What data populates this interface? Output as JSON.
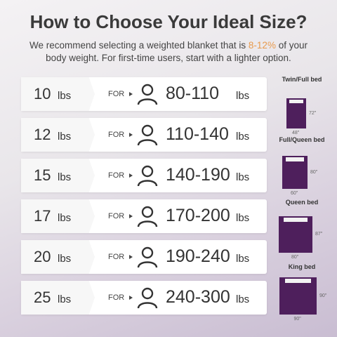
{
  "title": "How to Choose Your Ideal Size?",
  "subtitle": {
    "before": "We recommend selecting a weighted blanket that is",
    "highlight": "8-12%",
    "after": "of your body weight. For first-time users, start with a lighter option."
  },
  "rows": [
    {
      "weight": "10",
      "unit": "lbs",
      "for": "FOR",
      "range": "80-110",
      "range_unit": "lbs"
    },
    {
      "weight": "12",
      "unit": "lbs",
      "for": "FOR",
      "range": "110-140",
      "range_unit": "lbs"
    },
    {
      "weight": "15",
      "unit": "lbs",
      "for": "FOR",
      "range": "140-190",
      "range_unit": "lbs"
    },
    {
      "weight": "17",
      "unit": "lbs",
      "for": "FOR",
      "range": "170-200",
      "range_unit": "lbs"
    },
    {
      "weight": "20",
      "unit": "lbs",
      "for": "FOR",
      "range": "190-240",
      "range_unit": "lbs"
    },
    {
      "weight": "25",
      "unit": "lbs",
      "for": "FOR",
      "range": "240-300",
      "range_unit": "lbs"
    }
  ],
  "beds": [
    {
      "label": "Twin/Full bed",
      "width": "48\"",
      "length": "72\""
    },
    {
      "label": "Full/Queen bed",
      "width": "60\"",
      "length": "80\""
    },
    {
      "label": "Queen bed",
      "width": "80\"",
      "length": "87\""
    },
    {
      "label": "King bed",
      "width": "90\"",
      "length": "90\""
    }
  ]
}
